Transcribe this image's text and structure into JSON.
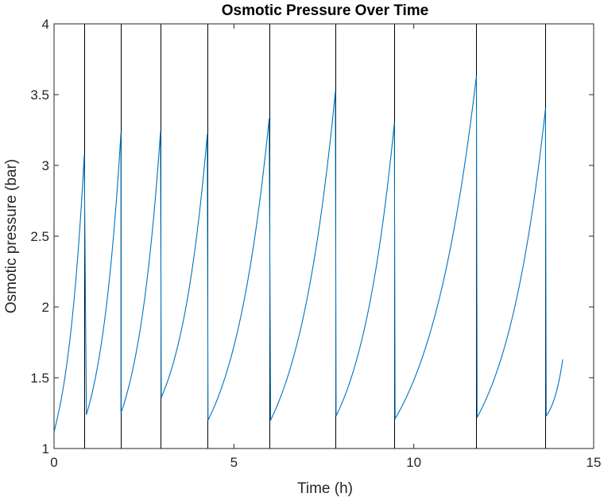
{
  "chart_data": {
    "type": "line",
    "title": "Osmotic Pressure Over Time",
    "xlabel": "Time (h)",
    "ylabel": "Osmotic pressure (bar)",
    "xlim": [
      0,
      15
    ],
    "ylim": [
      1,
      4
    ],
    "xticks": [
      0,
      5,
      10,
      15
    ],
    "yticks": [
      1,
      1.5,
      2,
      2.5,
      3,
      3.5,
      4
    ],
    "xtick_labels": [
      "0",
      "5",
      "10",
      "15"
    ],
    "ytick_labels": [
      "1",
      "1.5",
      "2",
      "2.5",
      "3",
      "3.5",
      "4"
    ],
    "grid": false,
    "line_color": "#0072BD",
    "vline_color": "#000000",
    "vertical_lines_x": [
      0.84,
      1.86,
      2.96,
      4.26,
      5.98,
      7.82,
      9.46,
      11.74,
      13.66
    ],
    "cycles": [
      {
        "t_start": 0.0,
        "t_end": 0.84,
        "p_start": 1.12,
        "p_end": 3.07
      },
      {
        "t_start": 0.9,
        "t_end": 1.86,
        "p_start": 1.24,
        "p_end": 3.23
      },
      {
        "t_start": 1.86,
        "t_end": 2.96,
        "p_start": 1.25,
        "p_end": 3.24
      },
      {
        "t_start": 2.98,
        "t_end": 4.26,
        "p_start": 1.36,
        "p_end": 3.22
      },
      {
        "t_start": 4.28,
        "t_end": 5.98,
        "p_start": 1.2,
        "p_end": 3.33
      },
      {
        "t_start": 6.02,
        "t_end": 7.82,
        "p_start": 1.2,
        "p_end": 3.52
      },
      {
        "t_start": 7.84,
        "t_end": 9.46,
        "p_start": 1.23,
        "p_end": 3.3
      },
      {
        "t_start": 9.48,
        "t_end": 11.74,
        "p_start": 1.21,
        "p_end": 3.63
      },
      {
        "t_start": 11.76,
        "t_end": 13.66,
        "p_start": 1.22,
        "p_end": 3.4
      },
      {
        "t_start": 13.68,
        "t_end": 14.14,
        "p_start": 1.23,
        "p_end": 1.63
      }
    ]
  }
}
